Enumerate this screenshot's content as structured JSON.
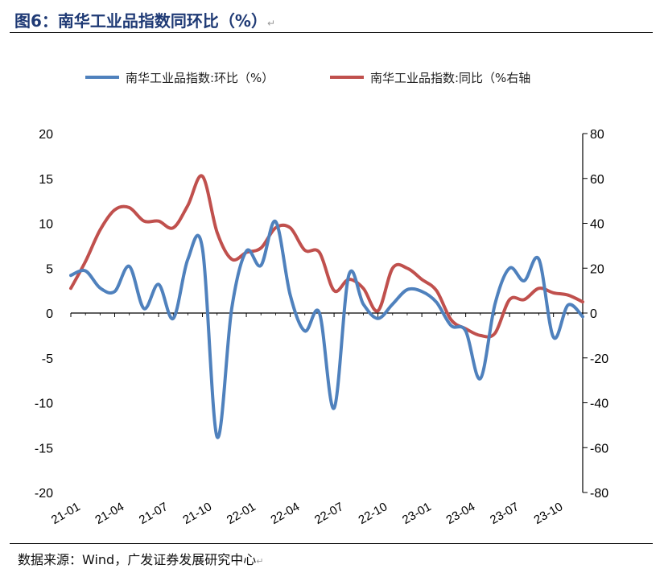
{
  "header": {
    "title": "图6：南华工业品指数同环比（%）",
    "return_mark": "↵"
  },
  "footer": {
    "source": "数据来源：Wind，广发证券发展研究中心",
    "return_mark": "↵"
  },
  "colors": {
    "series_mom": "#4f81bd",
    "series_yoy": "#c0504d",
    "title_color": "#1f3a75"
  },
  "chart_data": {
    "type": "line",
    "legend_position": "top",
    "grid": false,
    "x_tick_labels": [
      "21-01",
      "21-04",
      "21-07",
      "21-10",
      "22-01",
      "22-04",
      "22-07",
      "22-10",
      "23-01",
      "23-04",
      "23-07",
      "23-10"
    ],
    "left_axis": {
      "range": [
        -20,
        20
      ],
      "ticks": [
        "20",
        "15",
        "10",
        "5",
        "0",
        "-5",
        "-10",
        "-15",
        "-20"
      ]
    },
    "right_axis": {
      "range": [
        -80,
        80
      ],
      "ticks": [
        "80",
        "60",
        "40",
        "20",
        "0",
        "-20",
        "-40",
        "-60",
        "-80"
      ]
    },
    "series": [
      {
        "name": "南华工业品指数:环比（%）",
        "axis": "left",
        "x": [
          "2021-01",
          "2021-02",
          "2021-03",
          "2021-04",
          "2021-05",
          "2021-06",
          "2021-07",
          "2021-08",
          "2021-09",
          "2021-10",
          "2021-11",
          "2021-12",
          "2022-01",
          "2022-02",
          "2022-03",
          "2022-04",
          "2022-05",
          "2022-06",
          "2022-07",
          "2022-08",
          "2022-09",
          "2022-10",
          "2022-11",
          "2022-12",
          "2023-01",
          "2023-02",
          "2023-03",
          "2023-04",
          "2023-05",
          "2023-06",
          "2023-07",
          "2023-08",
          "2023-09",
          "2023-10",
          "2023-11",
          "2023-12"
        ],
        "values": [
          4.2,
          4.7,
          2.8,
          2.4,
          5.2,
          0.5,
          3.2,
          -0.6,
          6.0,
          7.2,
          -13.8,
          0.5,
          6.9,
          5.3,
          10.2,
          2.0,
          -2.0,
          0.0,
          -10.6,
          4.2,
          1.0,
          -0.6,
          1.0,
          2.6,
          2.4,
          1.2,
          -1.4,
          -2.0,
          -7.3,
          1.0,
          5.0,
          3.6,
          6.0,
          -2.7,
          0.9,
          -0.4
        ]
      },
      {
        "name": "南华工业品指数:同比（%右轴",
        "axis": "right",
        "x": [
          "2021-01",
          "2021-02",
          "2021-03",
          "2021-04",
          "2021-05",
          "2021-06",
          "2021-07",
          "2021-08",
          "2021-09",
          "2021-10",
          "2021-11",
          "2021-12",
          "2022-01",
          "2022-02",
          "2022-03",
          "2022-04",
          "2022-05",
          "2022-06",
          "2022-07",
          "2022-08",
          "2022-09",
          "2022-10",
          "2022-11",
          "2022-12",
          "2023-01",
          "2023-02",
          "2023-03",
          "2023-04",
          "2023-05",
          "2023-06",
          "2023-07",
          "2023-08",
          "2023-09",
          "2023-10",
          "2023-11",
          "2023-12"
        ],
        "values": [
          11,
          23,
          37,
          46,
          47,
          41,
          41,
          38,
          48,
          61,
          36,
          24,
          27,
          29,
          38,
          38,
          28,
          27,
          10,
          15,
          11,
          1,
          20,
          20,
          15,
          10,
          -3,
          -7,
          -10,
          -9,
          6,
          6,
          11,
          9,
          8,
          5
        ]
      }
    ]
  }
}
